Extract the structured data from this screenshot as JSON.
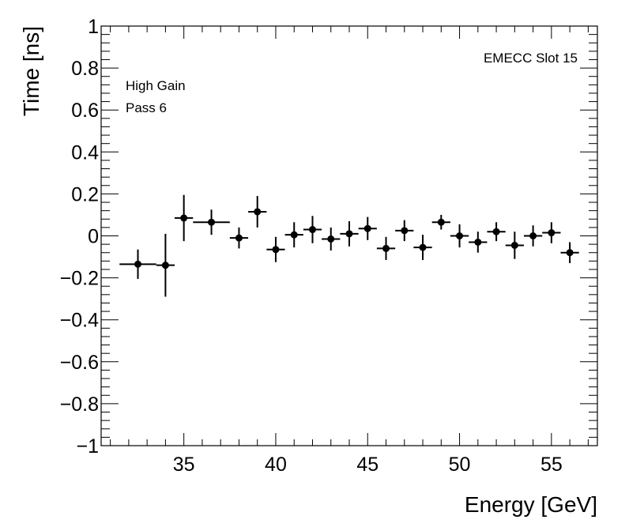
{
  "chart_data": {
    "type": "scatter",
    "xlabel": "Energy [GeV]",
    "ylabel": "Time [ns]",
    "xlim": [
      30.5,
      57.5
    ],
    "ylim": [
      -1,
      1
    ],
    "x_ticks": [
      35,
      40,
      45,
      50,
      55
    ],
    "y_ticks": [
      -1,
      -0.8,
      -0.6,
      -0.4,
      -0.2,
      0,
      0.2,
      0.4,
      0.6,
      0.8,
      1
    ],
    "x_tick_labels": [
      "35",
      "40",
      "45",
      "50",
      "55"
    ],
    "y_tick_labels": [
      "−1",
      "−0.8",
      "−0.6",
      "−0.4",
      "−0.2",
      "0",
      "0.2",
      "0.4",
      "0.6",
      "0.8",
      "1"
    ],
    "grid": false,
    "annotations": {
      "slot": "EMECC Slot 15",
      "gain": "High Gain",
      "pass": "Pass 6"
    },
    "points": [
      {
        "x": 32.5,
        "y": -0.135,
        "xerr": 1.0,
        "yerr": 0.07
      },
      {
        "x": 34.0,
        "y": -0.14,
        "xerr": 0.5,
        "yerr": 0.15
      },
      {
        "x": 35.0,
        "y": 0.085,
        "xerr": 0.5,
        "yerr": 0.11
      },
      {
        "x": 36.5,
        "y": 0.065,
        "xerr": 1.0,
        "yerr": 0.06
      },
      {
        "x": 38.0,
        "y": -0.01,
        "xerr": 0.5,
        "yerr": 0.05
      },
      {
        "x": 39.0,
        "y": 0.115,
        "xerr": 0.5,
        "yerr": 0.075
      },
      {
        "x": 40.0,
        "y": -0.065,
        "xerr": 0.5,
        "yerr": 0.06
      },
      {
        "x": 41.0,
        "y": 0.005,
        "xerr": 0.5,
        "yerr": 0.06
      },
      {
        "x": 42.0,
        "y": 0.03,
        "xerr": 0.5,
        "yerr": 0.065
      },
      {
        "x": 43.0,
        "y": -0.015,
        "xerr": 0.5,
        "yerr": 0.055
      },
      {
        "x": 44.0,
        "y": 0.01,
        "xerr": 0.5,
        "yerr": 0.06
      },
      {
        "x": 45.0,
        "y": 0.035,
        "xerr": 0.5,
        "yerr": 0.055
      },
      {
        "x": 46.0,
        "y": -0.06,
        "xerr": 0.5,
        "yerr": 0.055
      },
      {
        "x": 47.0,
        "y": 0.025,
        "xerr": 0.5,
        "yerr": 0.05
      },
      {
        "x": 48.0,
        "y": -0.055,
        "xerr": 0.5,
        "yerr": 0.06
      },
      {
        "x": 49.0,
        "y": 0.065,
        "xerr": 0.5,
        "yerr": 0.035
      },
      {
        "x": 50.0,
        "y": 0.0,
        "xerr": 0.5,
        "yerr": 0.055
      },
      {
        "x": 51.0,
        "y": -0.03,
        "xerr": 0.5,
        "yerr": 0.05
      },
      {
        "x": 52.0,
        "y": 0.02,
        "xerr": 0.5,
        "yerr": 0.045
      },
      {
        "x": 53.0,
        "y": -0.045,
        "xerr": 0.5,
        "yerr": 0.065
      },
      {
        "x": 54.0,
        "y": 0.0,
        "xerr": 0.5,
        "yerr": 0.05
      },
      {
        "x": 55.0,
        "y": 0.015,
        "xerr": 0.5,
        "yerr": 0.05
      },
      {
        "x": 56.0,
        "y": -0.08,
        "xerr": 0.5,
        "yerr": 0.05
      }
    ]
  }
}
